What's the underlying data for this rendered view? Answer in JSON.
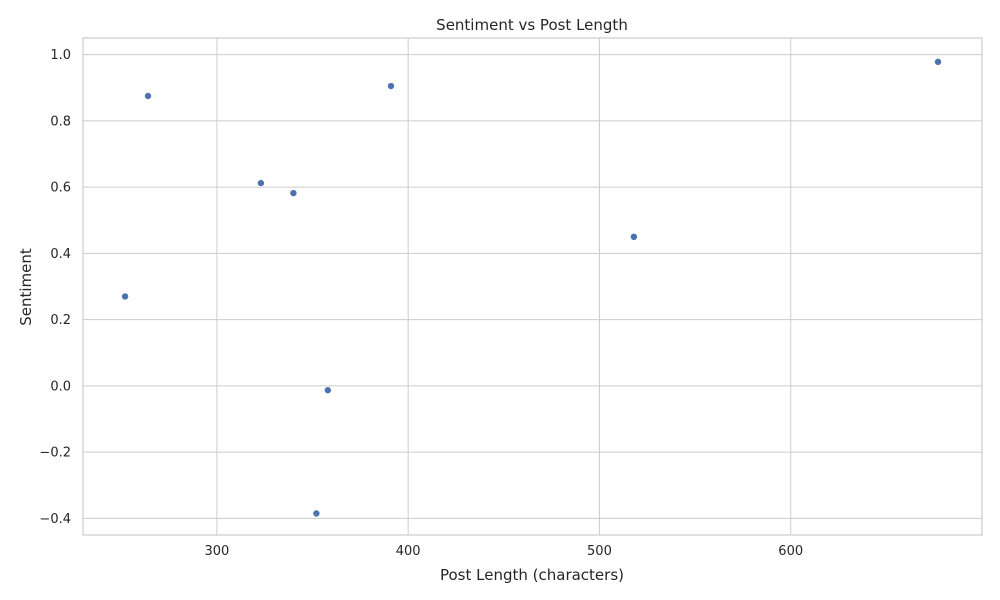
{
  "chart_data": {
    "type": "scatter",
    "title": "Sentiment vs Post Length",
    "xlabel": "Post Length (characters)",
    "ylabel": "Sentiment",
    "xlim": [
      230,
      700
    ],
    "ylim": [
      -0.45,
      1.05
    ],
    "x_ticks": [
      300,
      400,
      500,
      600
    ],
    "x_tick_labels": [
      "300",
      "400",
      "500",
      "600"
    ],
    "y_ticks": [
      -0.4,
      -0.2,
      0.0,
      0.2,
      0.4,
      0.6,
      0.8,
      1.0
    ],
    "y_tick_labels": [
      "−0.4",
      "−0.2",
      "0.0",
      "0.2",
      "0.4",
      "0.6",
      "0.8",
      "1.0"
    ],
    "grid": true,
    "point_color": "#4c72b0",
    "points": [
      {
        "x": 252,
        "y": 0.27
      },
      {
        "x": 264,
        "y": 0.875
      },
      {
        "x": 323,
        "y": 0.612
      },
      {
        "x": 340,
        "y": 0.582
      },
      {
        "x": 352,
        "y": -0.385
      },
      {
        "x": 358,
        "y": -0.013
      },
      {
        "x": 391,
        "y": 0.905
      },
      {
        "x": 518,
        "y": 0.45
      },
      {
        "x": 677,
        "y": 0.978
      }
    ]
  }
}
